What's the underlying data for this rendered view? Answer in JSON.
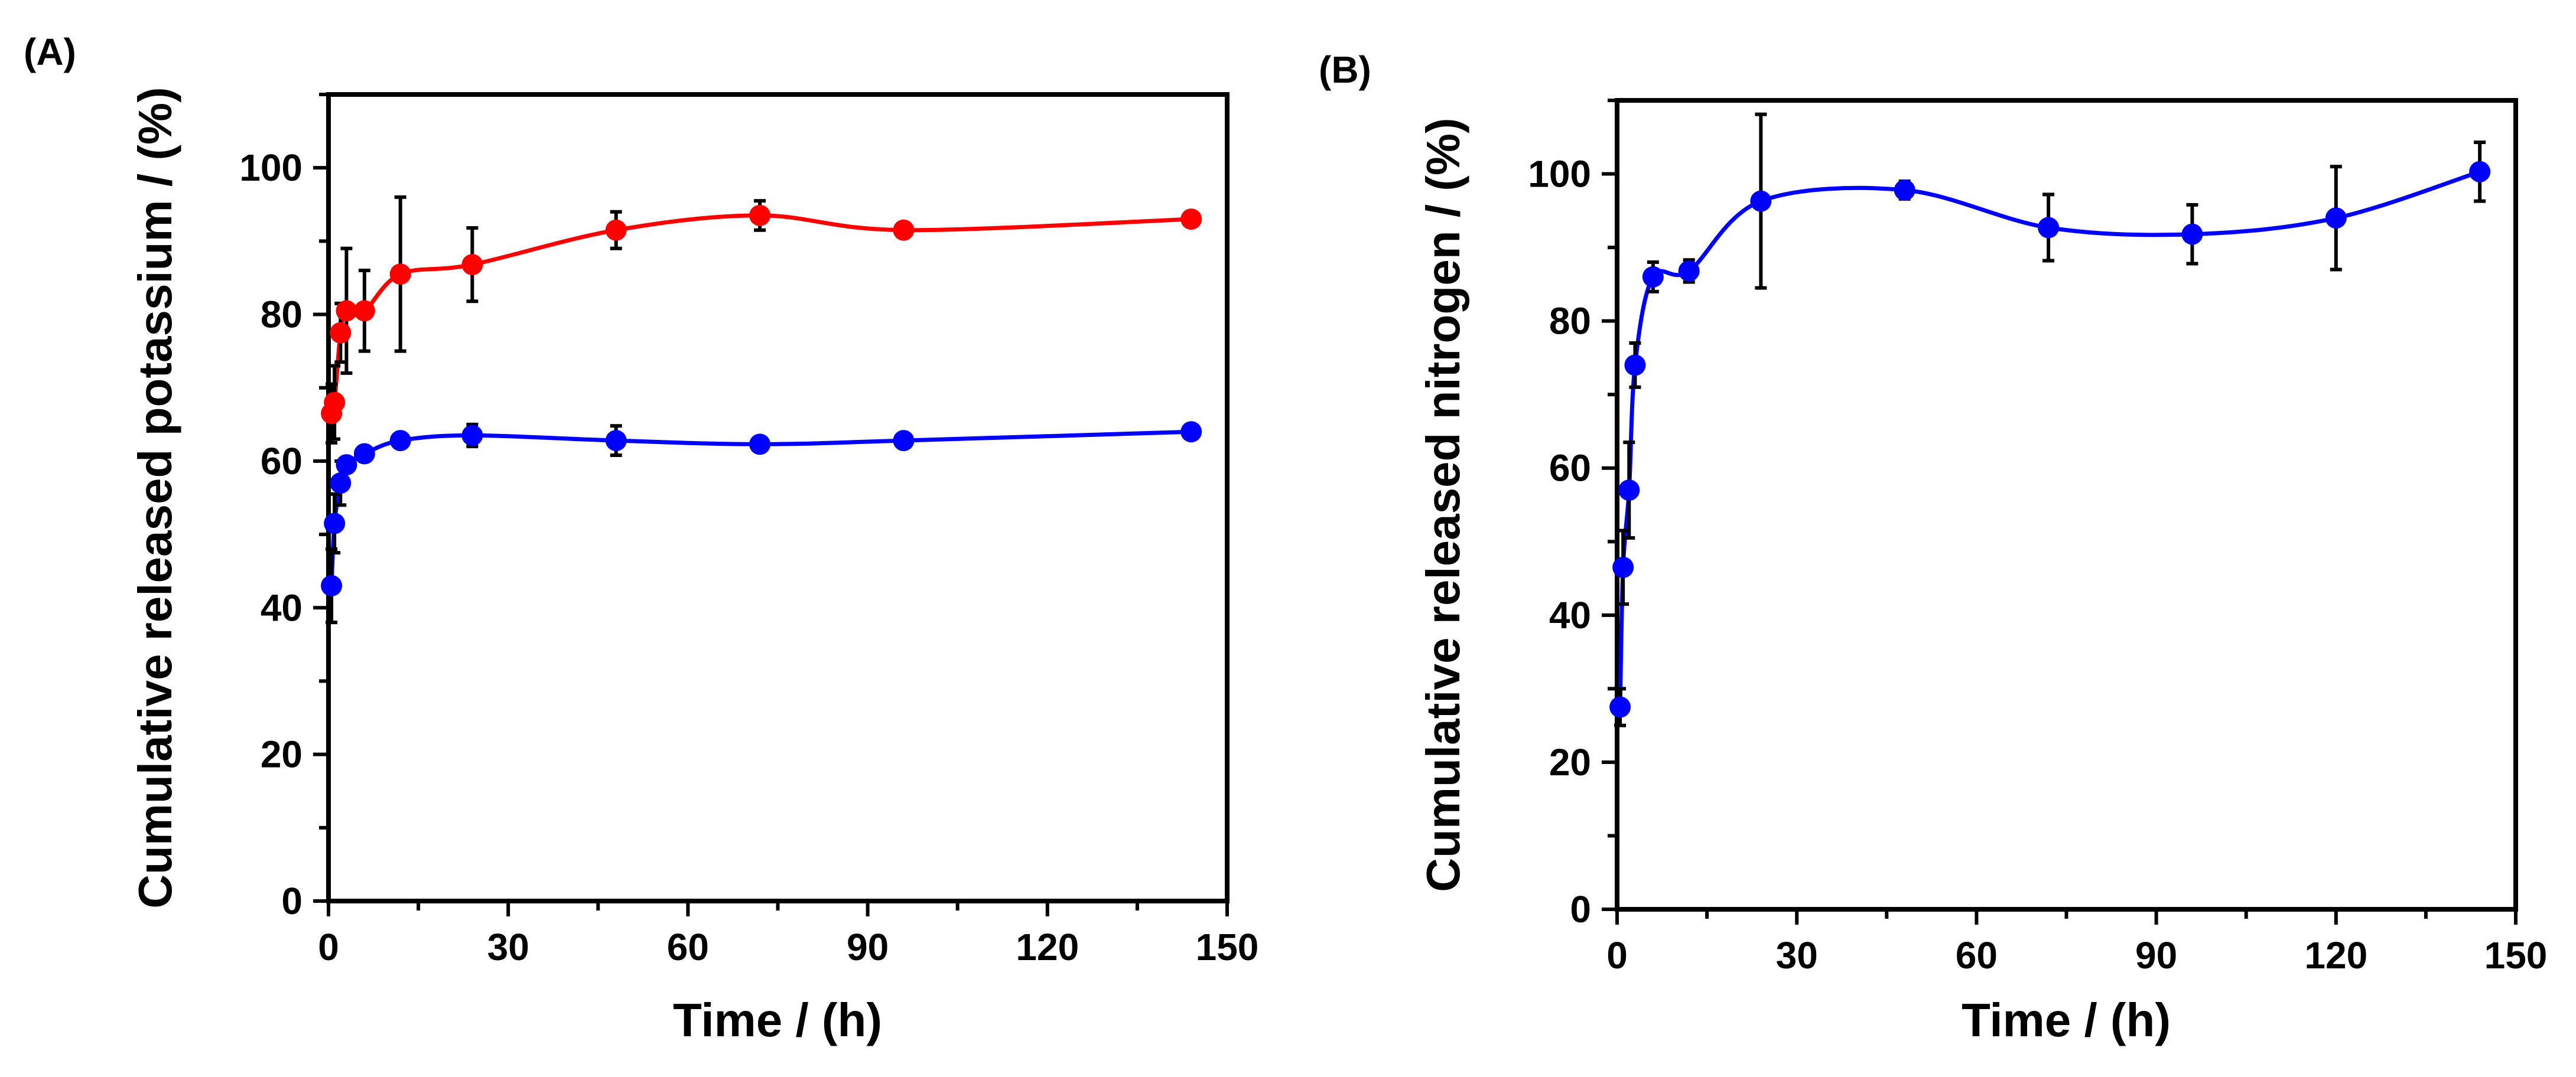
{
  "chart_data": [
    {
      "panel": "(A)",
      "type": "line",
      "xlabel": "Time / (h)",
      "ylabel": "Cumulative released potassium / (%)",
      "xlim": [
        0,
        150
      ],
      "ylim": [
        0,
        110
      ],
      "xticks": [
        0,
        30,
        60,
        90,
        120,
        150
      ],
      "yticks": [
        0,
        20,
        40,
        60,
        80,
        100
      ],
      "grid": false,
      "series": [
        {
          "name": "red",
          "color": "#ff0000",
          "x": [
            0.5,
            1,
            2,
            3,
            6,
            12,
            24,
            48,
            72,
            96,
            144
          ],
          "y": [
            66.5,
            68,
            77.5,
            80.5,
            80.5,
            85.5,
            86.8,
            91.5,
            93.5,
            91.5,
            93
          ],
          "err": [
            4,
            5,
            4,
            8.5,
            5.5,
            10.5,
            5,
            2.5,
            2,
            0,
            0
          ]
        },
        {
          "name": "blue",
          "color": "#0000ff",
          "x": [
            0.5,
            1,
            2,
            3,
            6,
            12,
            24,
            48,
            72,
            96,
            144
          ],
          "y": [
            43,
            51.5,
            57,
            59.5,
            61,
            62.8,
            63.5,
            62.8,
            62.3,
            62.8,
            64
          ],
          "err": [
            5,
            4,
            3,
            1,
            1,
            0.8,
            1.5,
            2,
            0.5,
            0,
            0
          ]
        }
      ]
    },
    {
      "panel": "(B)",
      "type": "line",
      "xlabel": "Time / (h)",
      "ylabel": "Cumulative released nitrogen / (%)",
      "xlim": [
        0,
        150
      ],
      "ylim": [
        0,
        110
      ],
      "xticks": [
        0,
        30,
        60,
        90,
        120,
        150
      ],
      "yticks": [
        0,
        20,
        40,
        60,
        80,
        100
      ],
      "grid": false,
      "series": [
        {
          "name": "blue",
          "color": "#0000ff",
          "x": [
            0.5,
            1,
            2,
            3,
            6,
            12,
            24,
            48,
            72,
            96,
            120,
            144
          ],
          "y": [
            27.5,
            46.5,
            57,
            74,
            86,
            86.8,
            96.3,
            97.8,
            92.7,
            91.8,
            94,
            100.3
          ],
          "err": [
            2.5,
            5,
            6.5,
            3,
            2,
            1.5,
            11.8,
            1.2,
            4.5,
            4,
            7,
            4
          ]
        }
      ]
    }
  ]
}
